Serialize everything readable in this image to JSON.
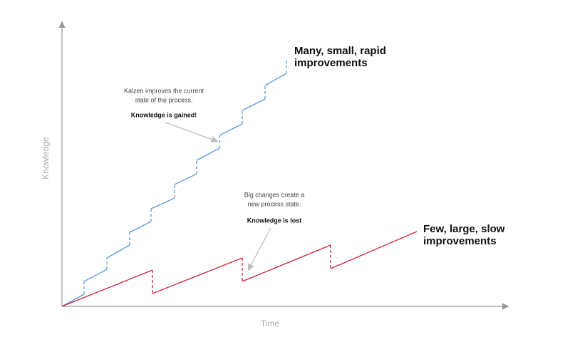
{
  "axes": {
    "y_label": "Knowledge",
    "x_label": "Time"
  },
  "kaizen": {
    "label_lines": [
      "Many, small, rapid",
      "improvements"
    ],
    "note_lines": [
      "Kaizen improves the current",
      "state of the process."
    ],
    "note_bold": "Knowledge is gained!"
  },
  "big_change": {
    "label_lines": [
      "Few, large, slow",
      "improvements"
    ],
    "note_lines": [
      "Big changes create a",
      "new process state."
    ],
    "note_bold": "Knowledge is lost"
  }
}
